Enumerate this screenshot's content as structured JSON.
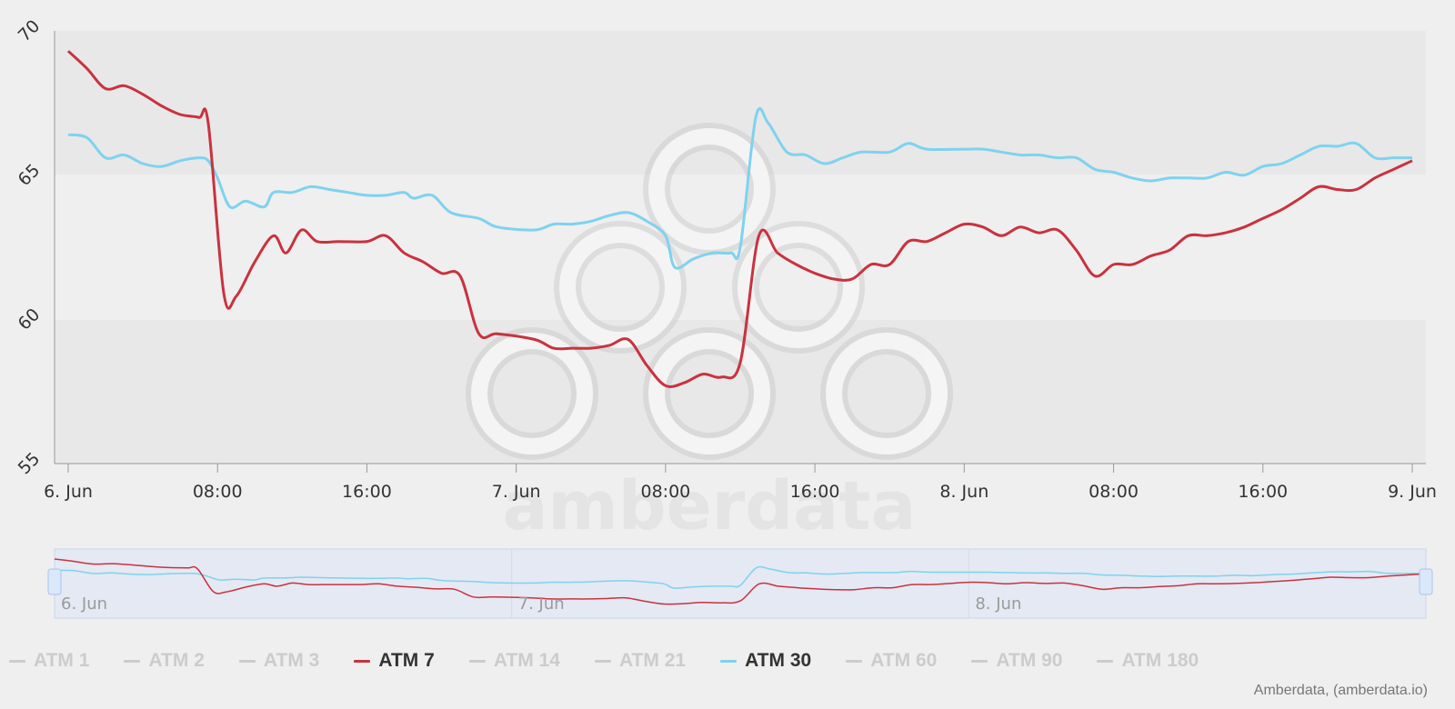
{
  "chart_data": {
    "type": "line",
    "title": "",
    "xlabel": "",
    "ylabel": "",
    "ylim": [
      55,
      70
    ],
    "y_ticks": [
      "55",
      "60",
      "65",
      "70"
    ],
    "x_range": [
      "2023-06-06 00:00",
      "2023-06-09 00:00"
    ],
    "x_ticks": [
      {
        "t": "2023-06-06 00:00",
        "label": "6. Jun"
      },
      {
        "t": "2023-06-06 08:00",
        "label": "08:00"
      },
      {
        "t": "2023-06-06 16:00",
        "label": "16:00"
      },
      {
        "t": "2023-06-07 00:00",
        "label": "7. Jun"
      },
      {
        "t": "2023-06-07 08:00",
        "label": "08:00"
      },
      {
        "t": "2023-06-07 16:00",
        "label": "16:00"
      },
      {
        "t": "2023-06-08 00:00",
        "label": "8. Jun"
      },
      {
        "t": "2023-06-08 08:00",
        "label": "08:00"
      },
      {
        "t": "2023-06-08 16:00",
        "label": "16:00"
      },
      {
        "t": "2023-06-09 00:00",
        "label": "9. Jun"
      }
    ],
    "grid": "alternating horizontal bands",
    "legend_position": "bottom",
    "navigator_labels": [
      "6. Jun",
      "7. Jun",
      "8. Jun"
    ],
    "series": [
      {
        "name": "ATM 7",
        "color": "#c9323f",
        "visible": true,
        "points": [
          [
            "2023-06-06 00:00",
            69.3
          ],
          [
            "2023-06-06 01:00",
            68.7
          ],
          [
            "2023-06-06 02:00",
            68.0
          ],
          [
            "2023-06-06 03:00",
            68.1
          ],
          [
            "2023-06-06 04:00",
            67.8
          ],
          [
            "2023-06-06 05:00",
            67.4
          ],
          [
            "2023-06-06 06:00",
            67.1
          ],
          [
            "2023-06-06 07:00",
            67.0
          ],
          [
            "2023-06-06 07:30",
            66.8
          ],
          [
            "2023-06-06 08:20",
            60.9
          ],
          [
            "2023-06-06 09:00",
            60.8
          ],
          [
            "2023-06-06 10:00",
            62.0
          ],
          [
            "2023-06-06 11:00",
            62.9
          ],
          [
            "2023-06-06 11:40",
            62.3
          ],
          [
            "2023-06-06 12:30",
            63.1
          ],
          [
            "2023-06-06 13:20",
            62.7
          ],
          [
            "2023-06-06 14:30",
            62.7
          ],
          [
            "2023-06-06 16:00",
            62.7
          ],
          [
            "2023-06-06 17:00",
            62.9
          ],
          [
            "2023-06-06 18:00",
            62.3
          ],
          [
            "2023-06-06 19:00",
            62.0
          ],
          [
            "2023-06-06 20:00",
            61.6
          ],
          [
            "2023-06-06 21:00",
            61.5
          ],
          [
            "2023-06-06 22:00",
            59.5
          ],
          [
            "2023-06-06 23:00",
            59.5
          ],
          [
            "2023-06-07 01:00",
            59.3
          ],
          [
            "2023-06-07 02:00",
            59.0
          ],
          [
            "2023-06-07 03:00",
            59.0
          ],
          [
            "2023-06-07 04:00",
            59.0
          ],
          [
            "2023-06-07 05:00",
            59.1
          ],
          [
            "2023-06-07 06:00",
            59.3
          ],
          [
            "2023-06-07 07:00",
            58.4
          ],
          [
            "2023-06-07 08:00",
            57.7
          ],
          [
            "2023-06-07 09:00",
            57.8
          ],
          [
            "2023-06-07 10:00",
            58.1
          ],
          [
            "2023-06-07 11:00",
            58.0
          ],
          [
            "2023-06-07 12:00",
            58.5
          ],
          [
            "2023-06-07 13:00",
            62.9
          ],
          [
            "2023-06-07 14:00",
            62.3
          ],
          [
            "2023-06-07 15:00",
            61.9
          ],
          [
            "2023-06-07 16:00",
            61.6
          ],
          [
            "2023-06-07 17:00",
            61.4
          ],
          [
            "2023-06-07 18:00",
            61.4
          ],
          [
            "2023-06-07 19:00",
            61.9
          ],
          [
            "2023-06-07 20:00",
            61.9
          ],
          [
            "2023-06-07 21:00",
            62.7
          ],
          [
            "2023-06-07 22:00",
            62.7
          ],
          [
            "2023-06-07 23:00",
            63.0
          ],
          [
            "2023-06-08 00:00",
            63.3
          ],
          [
            "2023-06-08 01:00",
            63.2
          ],
          [
            "2023-06-08 02:00",
            62.9
          ],
          [
            "2023-06-08 03:00",
            63.2
          ],
          [
            "2023-06-08 04:00",
            63.0
          ],
          [
            "2023-06-08 05:00",
            63.1
          ],
          [
            "2023-06-08 06:00",
            62.4
          ],
          [
            "2023-06-08 07:00",
            61.5
          ],
          [
            "2023-06-08 08:00",
            61.9
          ],
          [
            "2023-06-08 09:00",
            61.9
          ],
          [
            "2023-06-08 10:00",
            62.2
          ],
          [
            "2023-06-08 11:00",
            62.4
          ],
          [
            "2023-06-08 12:00",
            62.9
          ],
          [
            "2023-06-08 13:00",
            62.9
          ],
          [
            "2023-06-08 14:00",
            63.0
          ],
          [
            "2023-06-08 15:00",
            63.2
          ],
          [
            "2023-06-08 16:00",
            63.5
          ],
          [
            "2023-06-08 17:00",
            63.8
          ],
          [
            "2023-06-08 18:00",
            64.2
          ],
          [
            "2023-06-08 19:00",
            64.6
          ],
          [
            "2023-06-08 20:00",
            64.5
          ],
          [
            "2023-06-08 21:00",
            64.5
          ],
          [
            "2023-06-08 22:00",
            64.9
          ],
          [
            "2023-06-08 23:00",
            65.2
          ],
          [
            "2023-06-09 00:00",
            65.5
          ]
        ]
      },
      {
        "name": "ATM 30",
        "color": "#7fd2ee",
        "visible": true,
        "points": [
          [
            "2023-06-06 00:00",
            66.4
          ],
          [
            "2023-06-06 01:00",
            66.3
          ],
          [
            "2023-06-06 02:00",
            65.6
          ],
          [
            "2023-06-06 03:00",
            65.7
          ],
          [
            "2023-06-06 04:00",
            65.4
          ],
          [
            "2023-06-06 05:00",
            65.3
          ],
          [
            "2023-06-06 06:00",
            65.5
          ],
          [
            "2023-06-06 07:00",
            65.6
          ],
          [
            "2023-06-06 07:30",
            65.5
          ],
          [
            "2023-06-06 08:00",
            64.9
          ],
          [
            "2023-06-06 08:40",
            63.9
          ],
          [
            "2023-06-06 09:30",
            64.1
          ],
          [
            "2023-06-06 10:30",
            63.9
          ],
          [
            "2023-06-06 11:00",
            64.4
          ],
          [
            "2023-06-06 12:00",
            64.4
          ],
          [
            "2023-06-06 13:00",
            64.6
          ],
          [
            "2023-06-06 14:00",
            64.5
          ],
          [
            "2023-06-06 15:00",
            64.4
          ],
          [
            "2023-06-06 16:00",
            64.3
          ],
          [
            "2023-06-06 17:00",
            64.3
          ],
          [
            "2023-06-06 18:00",
            64.4
          ],
          [
            "2023-06-06 18:30",
            64.2
          ],
          [
            "2023-06-06 19:30",
            64.3
          ],
          [
            "2023-06-06 20:30",
            63.7
          ],
          [
            "2023-06-06 22:00",
            63.5
          ],
          [
            "2023-06-06 23:00",
            63.2
          ],
          [
            "2023-06-07 01:00",
            63.1
          ],
          [
            "2023-06-07 02:00",
            63.3
          ],
          [
            "2023-06-07 03:00",
            63.3
          ],
          [
            "2023-06-07 04:00",
            63.4
          ],
          [
            "2023-06-07 05:00",
            63.6
          ],
          [
            "2023-06-07 06:00",
            63.7
          ],
          [
            "2023-06-07 07:00",
            63.4
          ],
          [
            "2023-06-07 08:00",
            62.9
          ],
          [
            "2023-06-07 08:30",
            61.8
          ],
          [
            "2023-06-07 09:30",
            62.1
          ],
          [
            "2023-06-07 10:30",
            62.3
          ],
          [
            "2023-06-07 11:30",
            62.3
          ],
          [
            "2023-06-07 12:00",
            62.5
          ],
          [
            "2023-06-07 12:50",
            67.0
          ],
          [
            "2023-06-07 13:30",
            66.8
          ],
          [
            "2023-06-07 14:30",
            65.8
          ],
          [
            "2023-06-07 15:30",
            65.7
          ],
          [
            "2023-06-07 16:30",
            65.4
          ],
          [
            "2023-06-07 17:30",
            65.6
          ],
          [
            "2023-06-07 18:30",
            65.8
          ],
          [
            "2023-06-07 20:00",
            65.8
          ],
          [
            "2023-06-07 21:00",
            66.1
          ],
          [
            "2023-06-07 22:00",
            65.9
          ],
          [
            "2023-06-08 00:00",
            65.9
          ],
          [
            "2023-06-08 01:00",
            65.9
          ],
          [
            "2023-06-08 02:00",
            65.8
          ],
          [
            "2023-06-08 03:00",
            65.7
          ],
          [
            "2023-06-08 04:00",
            65.7
          ],
          [
            "2023-06-08 05:00",
            65.6
          ],
          [
            "2023-06-08 06:00",
            65.6
          ],
          [
            "2023-06-08 07:00",
            65.2
          ],
          [
            "2023-06-08 08:00",
            65.1
          ],
          [
            "2023-06-08 09:00",
            64.9
          ],
          [
            "2023-06-08 10:00",
            64.8
          ],
          [
            "2023-06-08 11:00",
            64.9
          ],
          [
            "2023-06-08 12:00",
            64.9
          ],
          [
            "2023-06-08 13:00",
            64.9
          ],
          [
            "2023-06-08 14:00",
            65.1
          ],
          [
            "2023-06-08 15:00",
            65.0
          ],
          [
            "2023-06-08 16:00",
            65.3
          ],
          [
            "2023-06-08 17:00",
            65.4
          ],
          [
            "2023-06-08 18:00",
            65.7
          ],
          [
            "2023-06-08 19:00",
            66.0
          ],
          [
            "2023-06-08 20:00",
            66.0
          ],
          [
            "2023-06-08 21:00",
            66.1
          ],
          [
            "2023-06-08 22:00",
            65.6
          ],
          [
            "2023-06-08 23:00",
            65.6
          ],
          [
            "2023-06-09 00:00",
            65.6
          ]
        ]
      }
    ]
  },
  "legend": [
    {
      "label": "ATM 1",
      "color": "#cccccc",
      "active": false
    },
    {
      "label": "ATM 2",
      "color": "#cccccc",
      "active": false
    },
    {
      "label": "ATM 3",
      "color": "#cccccc",
      "active": false
    },
    {
      "label": "ATM 7",
      "color": "#c9323f",
      "active": true
    },
    {
      "label": "ATM 14",
      "color": "#cccccc",
      "active": false
    },
    {
      "label": "ATM 21",
      "color": "#cccccc",
      "active": false
    },
    {
      "label": "ATM 30",
      "color": "#7fd2ee",
      "active": true
    },
    {
      "label": "ATM 60",
      "color": "#cccccc",
      "active": false
    },
    {
      "label": "ATM 90",
      "color": "#cccccc",
      "active": false
    },
    {
      "label": "ATM 180",
      "color": "#cccccc",
      "active": false
    }
  ],
  "watermark": {
    "text": "amberdata",
    "icon": "amberdata-logo-icon"
  },
  "credits": "Amberdata, (amberdata.io)",
  "colors": {
    "background": "#efefef",
    "band": "#e8e8e8",
    "axis": "#999999",
    "navigator_mask": "#e4e9f3",
    "navigator_border": "#c7d6ee"
  }
}
